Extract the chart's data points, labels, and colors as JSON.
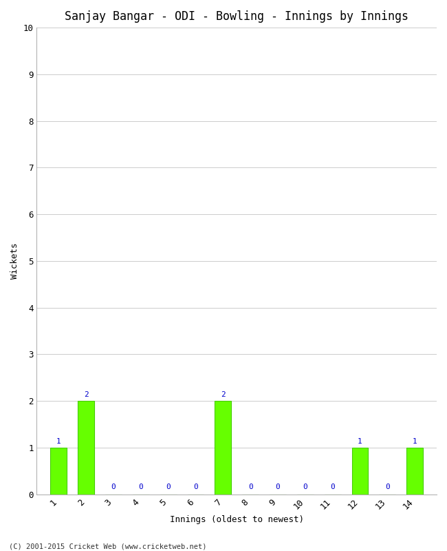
{
  "title": "Sanjay Bangar - ODI - Bowling - Innings by Innings",
  "xlabel": "Innings (oldest to newest)",
  "ylabel": "Wickets",
  "innings": [
    1,
    2,
    3,
    4,
    5,
    6,
    7,
    8,
    9,
    10,
    11,
    12,
    13,
    14
  ],
  "wickets": [
    1,
    2,
    0,
    0,
    0,
    0,
    2,
    0,
    0,
    0,
    0,
    1,
    0,
    1
  ],
  "bar_color": "#66ff00",
  "bar_edge_color": "#44cc00",
  "label_color_nonzero": "#0000cc",
  "label_color_zero": "#0000cc",
  "ylim": [
    0,
    10
  ],
  "yticks": [
    0,
    1,
    2,
    3,
    4,
    5,
    6,
    7,
    8,
    9,
    10
  ],
  "background_color": "#ffffff",
  "grid_color": "#cccccc",
  "title_fontsize": 12,
  "axis_label_fontsize": 9,
  "tick_label_fontsize": 9,
  "annotation_fontsize": 8,
  "copyright": "(C) 2001-2015 Cricket Web (www.cricketweb.net)"
}
